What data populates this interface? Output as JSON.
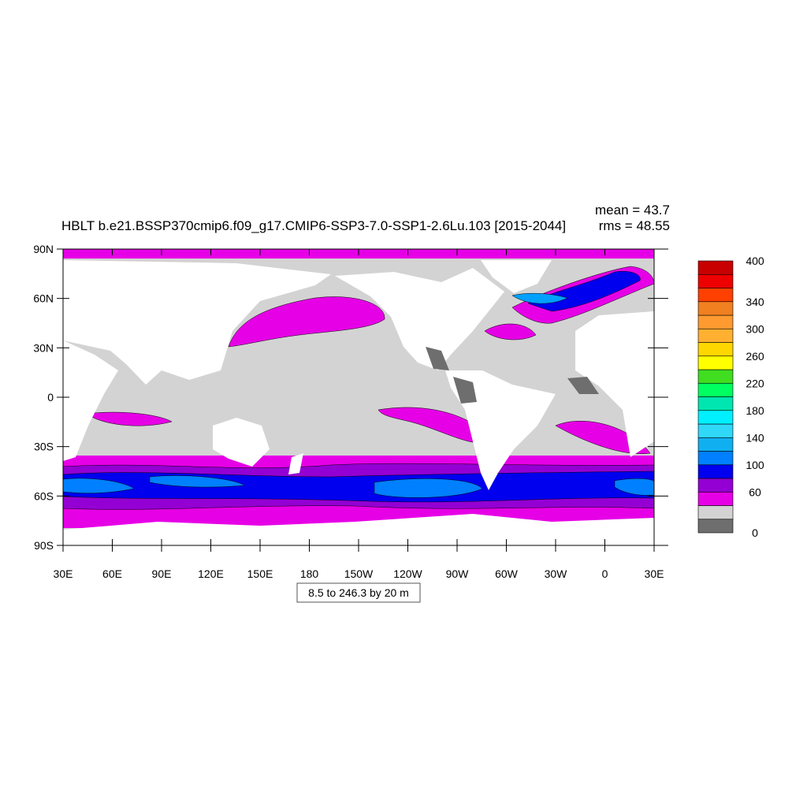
{
  "map": {
    "title": "HBLT b.e21.BSSP370cmip6.f09_g17.CMIP6-SSP3-7.0-SSP1-2.6Lu.103 [2015-2044]",
    "stats": [
      "mean = 43.7",
      "rms = 48.55"
    ],
    "contour_info": "8.5 to 246.3 by 20 m",
    "xlim": [
      30,
      390
    ],
    "ylim": [
      -90,
      90
    ],
    "xticks": [
      {
        "value": 30,
        "label": "30E"
      },
      {
        "value": 60,
        "label": "60E"
      },
      {
        "value": 90,
        "label": "90E"
      },
      {
        "value": 120,
        "label": "120E"
      },
      {
        "value": 150,
        "label": "150E"
      },
      {
        "value": 180,
        "label": "180"
      },
      {
        "value": 210,
        "label": "150W"
      },
      {
        "value": 240,
        "label": "120W"
      },
      {
        "value": 270,
        "label": "90W"
      },
      {
        "value": 300,
        "label": "60W"
      },
      {
        "value": 330,
        "label": "30W"
      },
      {
        "value": 360,
        "label": "0"
      },
      {
        "value": 390,
        "label": "30E"
      }
    ],
    "yticks": [
      {
        "value": -90,
        "label": "90S"
      },
      {
        "value": -60,
        "label": "60S"
      },
      {
        "value": -30,
        "label": "30S"
      },
      0,
      {
        "value": 30,
        "label": "30N"
      },
      {
        "value": 60,
        "label": "60N"
      },
      {
        "value": 90,
        "label": "90N"
      }
    ],
    "colorbar": {
      "bounds": [
        0,
        20,
        40,
        60,
        80,
        100,
        120,
        140,
        160,
        180,
        200,
        220,
        240,
        260,
        280,
        300,
        320,
        340,
        360,
        380,
        400
      ],
      "colors": [
        "#6e6e6e",
        "#d3d3d3",
        "#e600e6",
        "#9400d3",
        "#0000ee",
        "#0080ff",
        "#10b0f0",
        "#30d8f8",
        "#00f0ff",
        "#00e6b0",
        "#00ff60",
        "#40dd20",
        "#ffff00",
        "#ffd700",
        "#ffb030",
        "#ff9a30",
        "#f08020",
        "#ff4000",
        "#ee0000",
        "#c80000"
      ],
      "ticks": [
        0,
        60,
        100,
        140,
        180,
        220,
        260,
        300,
        340,
        400
      ]
    }
  }
}
